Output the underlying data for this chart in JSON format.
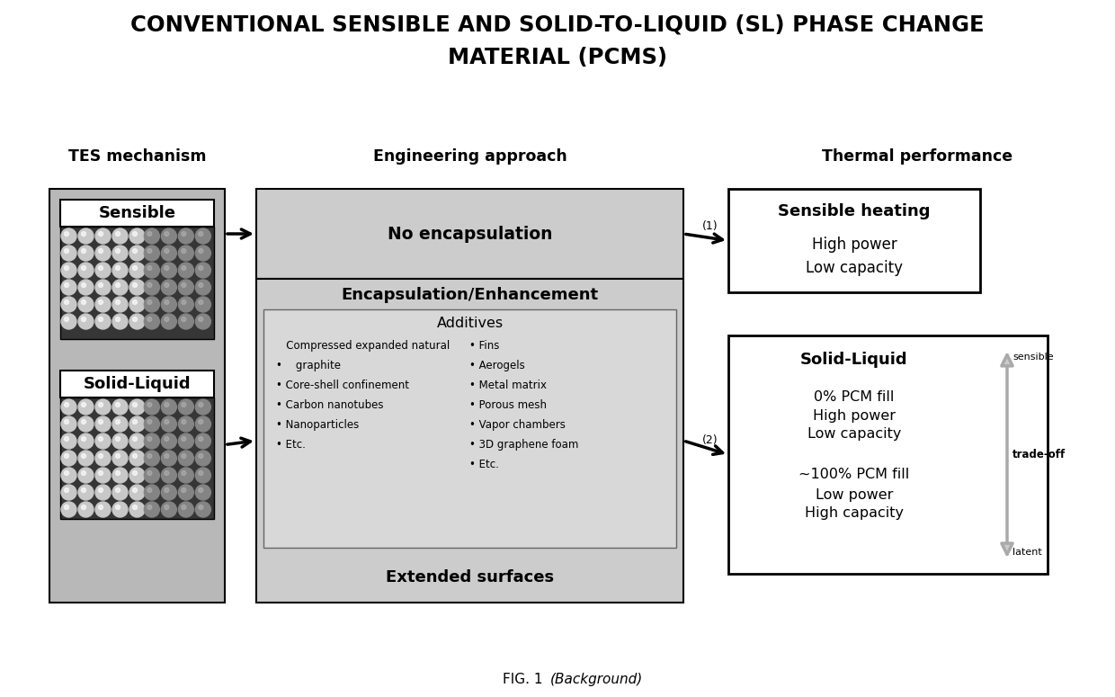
{
  "title_line1": "CONVENTIONAL SENSIBLE AND SOLID-TO-LIQUID (SL) PHASE CHANGE",
  "title_line2": "MATERIAL (PCMS)",
  "col1_header": "TES mechanism",
  "col2_header": "Engineering approach",
  "col3_header": "Thermal performance",
  "sensible_label": "Sensible",
  "solid_liquid_label": "Solid-Liquid",
  "no_encap_label": "No encapsulation",
  "encap_header": "Encapsulation/Enhancement",
  "additives_label": "Additives",
  "extended_label": "Extended surfaces",
  "additives_left_1": "Compressed expanded natural",
  "additives_left_2": "   graphite",
  "additives_left_3": "Core-shell confinement",
  "additives_left_4": "Carbon nanotubes",
  "additives_left_5": "Nanoparticles",
  "additives_left_6": "Etc.",
  "additives_right_1": "Fins",
  "additives_right_2": "Aerogels",
  "additives_right_3": "Metal matrix",
  "additives_right_4": "Porous mesh",
  "additives_right_5": "Vapor chambers",
  "additives_right_6": "3D graphene foam",
  "additives_right_7": "Etc.",
  "sensible_heating_title": "Sensible heating",
  "sensible_heating_line1": "High power",
  "sensible_heating_line2": "Low capacity",
  "solid_liquid_title": "Solid-Liquid",
  "sl_line1": "0% PCM fill",
  "sl_line2": "High power",
  "sl_line3": "Low capacity",
  "sl_line4": "~100% PCM fill",
  "sl_line5": "Low power",
  "sl_line6": "High capacity",
  "arrow1_label": "(1)",
  "arrow2_label": "(2)",
  "tradeoff_label": "trade-off",
  "sensible_side_label": "sensible",
  "latent_side_label": "latent",
  "fig_caption_1": "FIG. 1 ",
  "fig_caption_2": "(Background)",
  "bg_color": "#ffffff",
  "outer_gray": "#b8b8b8",
  "mid_gray_bg": "#cccccc",
  "add_inner_bg": "#d8d8d8",
  "dark_particle": "#363636",
  "sphere_light": "#c8c8c8",
  "sphere_dark": "#848484"
}
